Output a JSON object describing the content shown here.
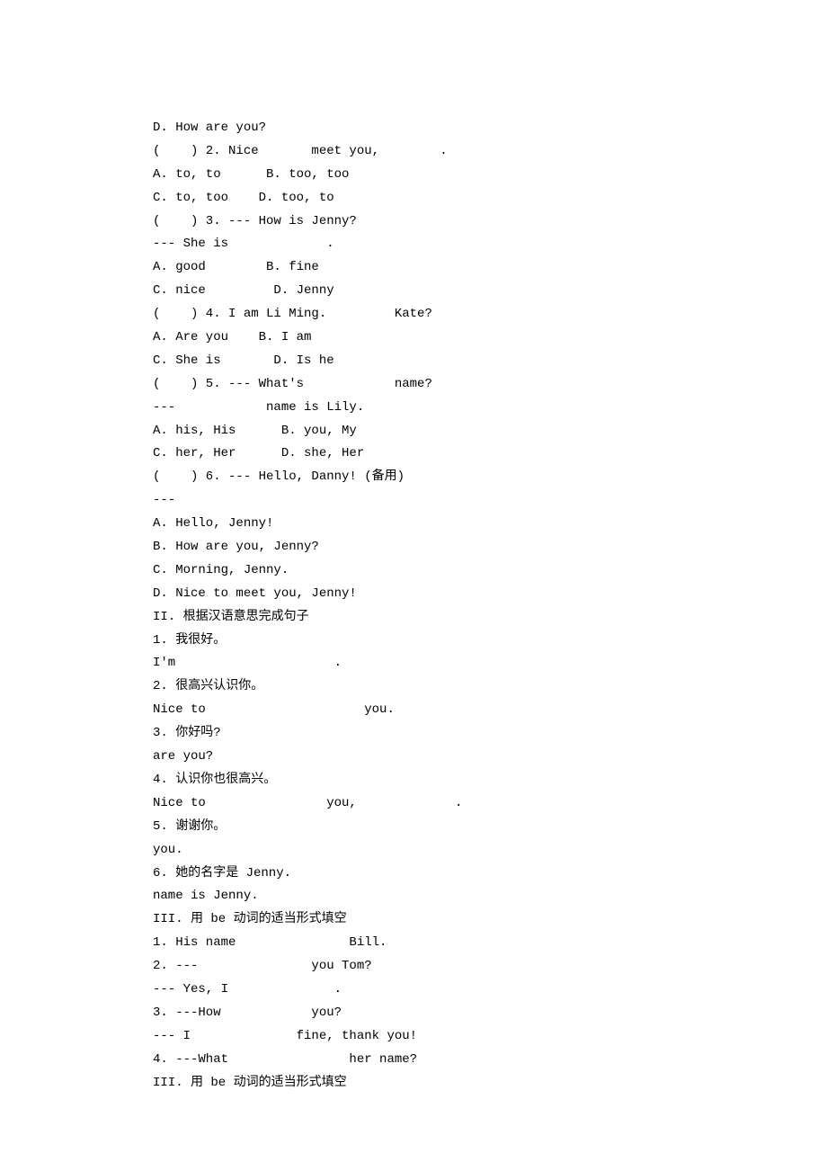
{
  "lines": [
    {
      "text": "D. How are you?"
    },
    {
      "text": "(    ) 2. Nice       meet you,        ."
    },
    {
      "text": "A. to, to      B. too, too"
    },
    {
      "text": "C. to, too    D. too, to"
    },
    {
      "text": "(    ) 3. --- How is Jenny?"
    },
    {
      "text": "--- She is             ."
    },
    {
      "text": "A. good        B. fine"
    },
    {
      "text": "C. nice         D. Jenny"
    },
    {
      "text": "(    ) 4. I am Li Ming.         Kate?"
    },
    {
      "text": "A. Are you    B. I am"
    },
    {
      "text": "C. She is       D. Is he"
    },
    {
      "text": "(    ) 5. --- What's            name?"
    },
    {
      "text": "---            name is Lily."
    },
    {
      "text": "A. his, His      B. you, My"
    },
    {
      "text": "C. her, Her      D. she, Her"
    },
    {
      "text": "(    ) 6. --- Hello, Danny! (备用)"
    },
    {
      "text": "---"
    },
    {
      "text": "A. Hello, Jenny!"
    },
    {
      "text": "B. How are you, Jenny?"
    },
    {
      "text": "C. Morning, Jenny."
    },
    {
      "text": "D. Nice to meet you, Jenny!"
    },
    {
      "text": "II. 根据汉语意思完成句子"
    },
    {
      "text": "1. 我很好。"
    },
    {
      "text": "I'm                     ."
    },
    {
      "text": "2. 很高兴认识你。"
    },
    {
      "text": "Nice to                     you."
    },
    {
      "text": "3. 你好吗?"
    },
    {
      "text": "are you?"
    },
    {
      "text": "4. 认识你也很高兴。"
    },
    {
      "text": "Nice to                you,             ."
    },
    {
      "text": "5. 谢谢你。"
    },
    {
      "text": "you."
    },
    {
      "text": "6. 她的名字是 Jenny."
    },
    {
      "text": "name is Jenny."
    },
    {
      "text": "III. 用 be 动词的适当形式填空"
    },
    {
      "text": "1. His name               Bill."
    },
    {
      "text": "2. ---               you Tom?"
    },
    {
      "text": "--- Yes, I              ."
    },
    {
      "text": "3. ---How            you?"
    },
    {
      "text": "--- I              fine, thank you!"
    },
    {
      "text": "4. ---What                her name?"
    },
    {
      "text": "III. 用 be 动词的适当形式填空"
    }
  ]
}
